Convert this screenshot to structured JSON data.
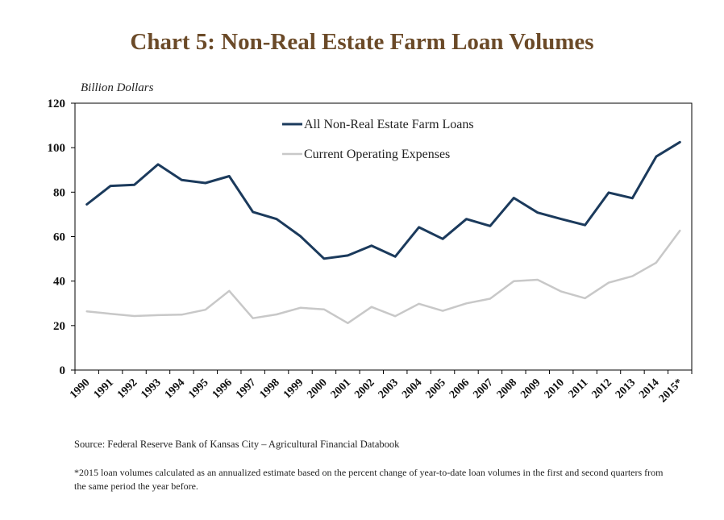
{
  "chart_data": {
    "type": "line",
    "title": "Chart 5: Non-Real Estate Farm Loan Volumes",
    "ylabel": "Billion Dollars",
    "xlabel": "",
    "ylim": [
      0,
      120
    ],
    "yticks": [
      0,
      20,
      40,
      60,
      80,
      100,
      120
    ],
    "categories": [
      "1990",
      "1991",
      "1992",
      "1993",
      "1994",
      "1995",
      "1996",
      "1997",
      "1998",
      "1999",
      "2000",
      "2001",
      "2002",
      "2003",
      "2004",
      "2005",
      "2006",
      "2007",
      "2008",
      "2009",
      "2010",
      "2011",
      "2012",
      "2013",
      "2014",
      "2015*"
    ],
    "grid": false,
    "legend_position": "top-center",
    "series": [
      {
        "name": "All Non-Real Estate Farm Loans",
        "color": "#1b3a5c",
        "values": [
          74.5,
          82.8,
          83.3,
          92.5,
          85.5,
          84.1,
          87.2,
          71.1,
          67.9,
          60.2,
          50.1,
          51.5,
          55.9,
          51.0,
          64.2,
          59.0,
          67.9,
          64.8,
          77.4,
          70.8,
          67.9,
          65.2,
          79.8,
          77.3,
          96.0,
          102.5
        ]
      },
      {
        "name": "Current Operating Expenses",
        "color": "#c8c8c8",
        "values": [
          26.4,
          25.3,
          24.3,
          24.7,
          24.9,
          27.1,
          35.6,
          23.3,
          25.0,
          28.0,
          27.3,
          21.1,
          28.4,
          24.2,
          29.8,
          26.6,
          30.0,
          32.1,
          40.0,
          40.6,
          35.3,
          32.3,
          39.3,
          42.2,
          48.3,
          62.7
        ]
      }
    ]
  },
  "footer": {
    "source": "Source: Federal Reserve Bank of Kansas City – Agricultural Financial Databook",
    "footnote": "*2015 loan volumes calculated as an annualized estimate based on the percent change of year-to-date loan volumes in the first and second quarters from the same period the year before."
  }
}
